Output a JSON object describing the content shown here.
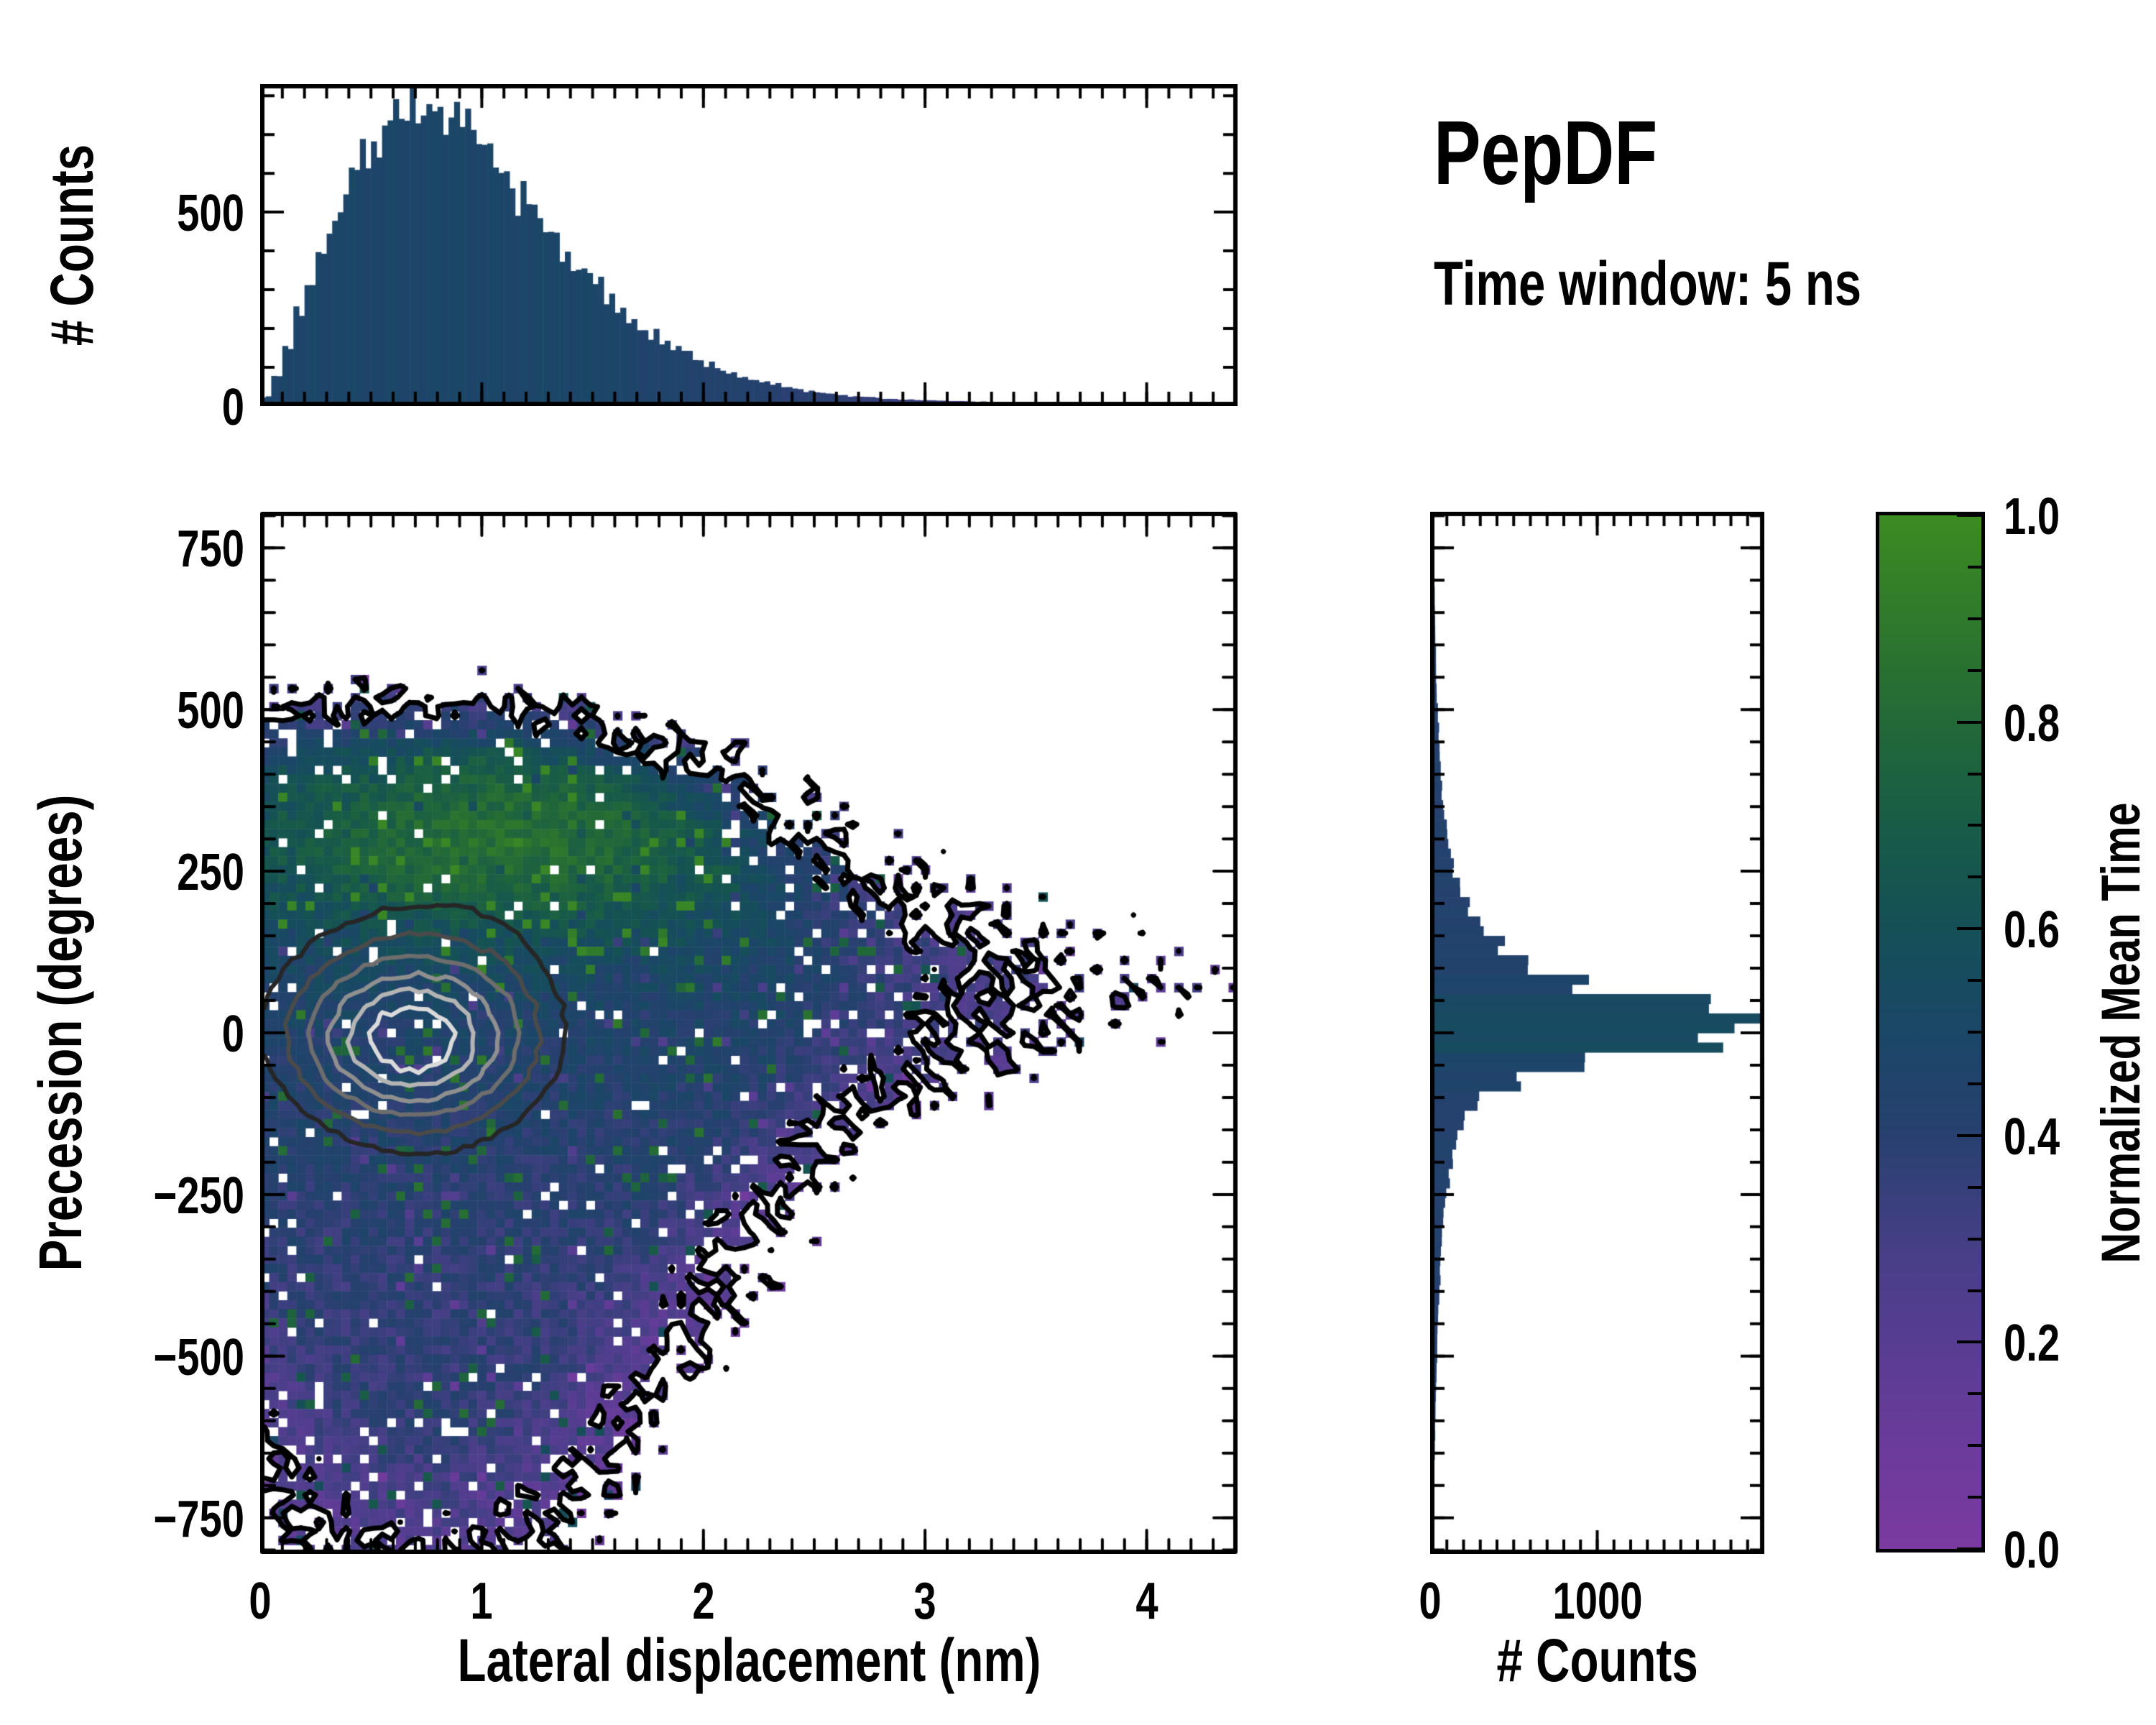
{
  "title": "PepDF",
  "subtitle": "Time window: 5 ns",
  "colormap": {
    "label": "Normalized Mean Time",
    "tick_labels": [
      "0.0",
      "0.2",
      "0.4",
      "0.6",
      "0.8",
      "1.0"
    ],
    "tick_values": [
      0.0,
      0.2,
      0.4,
      0.6,
      0.8,
      1.0
    ],
    "minor_tick_step": 0.05,
    "stops": [
      {
        "t": 0.0,
        "color": "#7b3aa0"
      },
      {
        "t": 0.1,
        "color": "#6b3b9b"
      },
      {
        "t": 0.2,
        "color": "#573d92"
      },
      {
        "t": 0.3,
        "color": "#443f85"
      },
      {
        "t": 0.4,
        "color": "#27406f"
      },
      {
        "t": 0.48,
        "color": "#1d4569"
      },
      {
        "t": 0.55,
        "color": "#174b60"
      },
      {
        "t": 0.62,
        "color": "#155253"
      },
      {
        "t": 0.7,
        "color": "#185c47"
      },
      {
        "t": 0.78,
        "color": "#20663b"
      },
      {
        "t": 0.86,
        "color": "#2a7230"
      },
      {
        "t": 1.0,
        "color": "#3c8b22"
      }
    ]
  },
  "chart_data": [
    {
      "id": "top_marginal_histogram",
      "type": "bar",
      "orientation": "vertical",
      "ylabel": "# Counts",
      "xlim": [
        0,
        4.41
      ],
      "ylim": [
        0,
        830
      ],
      "yticks": [
        0,
        500
      ],
      "ytick_labels": [
        "0",
        "500"
      ],
      "y_minor_step": 100,
      "xticks": [
        0,
        1,
        2,
        3,
        4
      ],
      "x_minor_step": 0.1,
      "bin_start": 0.0,
      "bin_width": 0.05,
      "counts": [
        18,
        72,
        148,
        240,
        318,
        410,
        468,
        535,
        590,
        645,
        686,
        735,
        758,
        781,
        766,
        748,
        745,
        719,
        702,
        668,
        642,
        603,
        575,
        532,
        503,
        461,
        432,
        392,
        365,
        328,
        303,
        270,
        249,
        221,
        202,
        178,
        163,
        142,
        130,
        112,
        103,
        88,
        82,
        69,
        64,
        55,
        50,
        42,
        39,
        33,
        31,
        25,
        24,
        19,
        18,
        17,
        13,
        12,
        11,
        10,
        9,
        8,
        8,
        7,
        6,
        6,
        5,
        4,
        4,
        3,
        3,
        3,
        2,
        2,
        2,
        2,
        2,
        1,
        1,
        1,
        1,
        1,
        1,
        1,
        1,
        1,
        1,
        1
      ],
      "bar_value_model": {
        "base_t": 0.48,
        "tail_t": 0.33,
        "tail_start_nm": 1.6,
        "tail_end_nm": 3.0,
        "jitter": 0.04
      }
    },
    {
      "id": "joint_heatmap",
      "type": "heatmap",
      "xlabel": "Lateral displacement (nm)",
      "ylabel": "Precession (degrees)",
      "value_label": "Normalized Mean Time",
      "xlim": [
        0,
        4.41
      ],
      "ylim": [
        -806,
        806
      ],
      "xticks": [
        0,
        1,
        2,
        3,
        4
      ],
      "xtick_labels": [
        "0",
        "1",
        "2",
        "3",
        "4"
      ],
      "x_minor_step": 0.1,
      "yticks": [
        750,
        500,
        250,
        0,
        -250,
        -500,
        -750
      ],
      "ytick_labels": [
        "750",
        "500",
        "250",
        "0",
        "−250",
        "−500",
        "−750"
      ],
      "y_minor_step": 50,
      "grid": {
        "cols": 108,
        "rows": 115
      },
      "generator": {
        "seed": 42,
        "fill_level": 0.115,
        "noise_amp": 0.14,
        "hole_prob_base": 0.03,
        "hole_prob_edge": 0.1,
        "density_gaussians": [
          {
            "w": 1.0,
            "x": 0.65,
            "y": -15,
            "sx": 0.45,
            "sy": 115
          },
          {
            "w": 0.55,
            "x": 0.9,
            "y": -60,
            "sx": 0.8,
            "sy": 260
          },
          {
            "w": 0.3,
            "x": 0.75,
            "y": -480,
            "sx": 0.55,
            "sy": 230
          },
          {
            "w": 0.34,
            "x": 0.8,
            "y": 290,
            "sx": 0.75,
            "sy": 100
          }
        ],
        "tail": {
          "w": 0.5,
          "y0": 70,
          "sy_base": 200,
          "sy_slope": 22,
          "sy_min": 95,
          "x_start": 1.1,
          "decay": 1.5
        },
        "value_field": {
          "base": 0.46,
          "noise": 0.16,
          "green_band": {
            "w": 0.38,
            "y": 300,
            "sy": 110,
            "x": 1.1,
            "sx": 0.85
          },
          "green_speckle_prob": 0.055,
          "green_speckle_boost": 0.38,
          "purple_speckle_prob": 0.03,
          "purple_speckle_drop": 0.15,
          "edge_purple": 0.3,
          "edge_f_ref": 0.3,
          "lower_purple": {
            "w": 0.1,
            "y": -520,
            "sy": 260
          }
        }
      },
      "contours": {
        "boundary": {
          "level": 0.115,
          "color": "#000000",
          "width": 7
        },
        "center_levels": [
          {
            "level": 1.12,
            "color": "#262626"
          },
          {
            "level": 1.32,
            "color": "#4a4a4a"
          },
          {
            "level": 1.5,
            "color": "#6d6d6d"
          },
          {
            "level": 1.66,
            "color": "#8f8f8f"
          },
          {
            "level": 1.8,
            "color": "#b4b4b4"
          },
          {
            "level": 1.91,
            "color": "#dadada"
          }
        ],
        "width": 6
      }
    },
    {
      "id": "right_marginal_histogram",
      "type": "bar",
      "orientation": "horizontal",
      "xlabel": "# Counts",
      "xlim": [
        0,
        2000
      ],
      "ylim": [
        -806,
        806
      ],
      "xticks": [
        0,
        1000
      ],
      "xtick_labels": [
        "0",
        "1000"
      ],
      "x_minor_step": 100,
      "y_minor_step": 50,
      "bin_start": -810,
      "bin_width": 30,
      "counts": [
        7,
        8,
        10,
        11,
        13,
        15,
        17,
        20,
        22,
        25,
        28,
        32,
        36,
        41,
        46,
        52,
        59,
        69,
        82,
        100,
        122,
        155,
        200,
        270,
        500,
        900,
        1700,
        1920,
        1550,
        900,
        560,
        420,
        293,
        216,
        164,
        129,
        103,
        84,
        70,
        60,
        51,
        44,
        38,
        33,
        28,
        24,
        21,
        19,
        16,
        14,
        12,
        11,
        9,
        8
      ],
      "bar_value_model": {
        "base_t": 0.42,
        "peak_boost": 0.13,
        "jitter": 0.04
      }
    }
  ]
}
